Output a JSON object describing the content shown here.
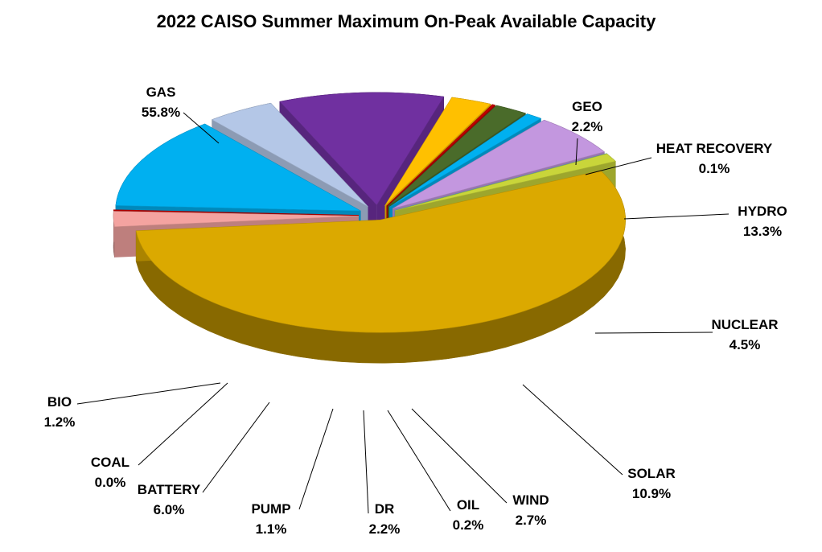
{
  "chart_data": {
    "type": "pie",
    "title": "2022 CAISO Summer Maximum On-Peak Available Capacity",
    "slices": [
      {
        "label": "GAS",
        "value": 55.8,
        "display": "55.8%",
        "color": "#dba900"
      },
      {
        "label": "GEO",
        "value": 2.2,
        "display": "2.2%",
        "color": "#f4a3a0"
      },
      {
        "label": "HEAT RECOVERY",
        "value": 0.1,
        "display": "0.1%",
        "color": "#c00000"
      },
      {
        "label": "HYDRO",
        "value": 13.3,
        "display": "13.3%",
        "color": "#00b0f0"
      },
      {
        "label": "NUCLEAR",
        "value": 4.5,
        "display": "4.5%",
        "color": "#b4c7e7"
      },
      {
        "label": "SOLAR",
        "value": 10.9,
        "display": "10.9%",
        "color": "#7030a0"
      },
      {
        "label": "WIND",
        "value": 2.7,
        "display": "2.7%",
        "color": "#ffc000"
      },
      {
        "label": "OIL",
        "value": 0.2,
        "display": "0.2%",
        "color": "#c00000"
      },
      {
        "label": "DR",
        "value": 2.2,
        "display": "2.2%",
        "color": "#4a6b2a"
      },
      {
        "label": "PUMP",
        "value": 1.1,
        "display": "1.1%",
        "color": "#00b0f0"
      },
      {
        "label": "BATTERY",
        "value": 6.0,
        "display": "6.0%",
        "color": "#c397df"
      },
      {
        "label": "COAL",
        "value": 0.0,
        "display": "0.0%",
        "color": "#4bacc6"
      },
      {
        "label": "BIO",
        "value": 1.2,
        "display": "1.2%",
        "color": "#c9d53a"
      }
    ],
    "style": "3d-exploded-pie",
    "legend": "none"
  }
}
